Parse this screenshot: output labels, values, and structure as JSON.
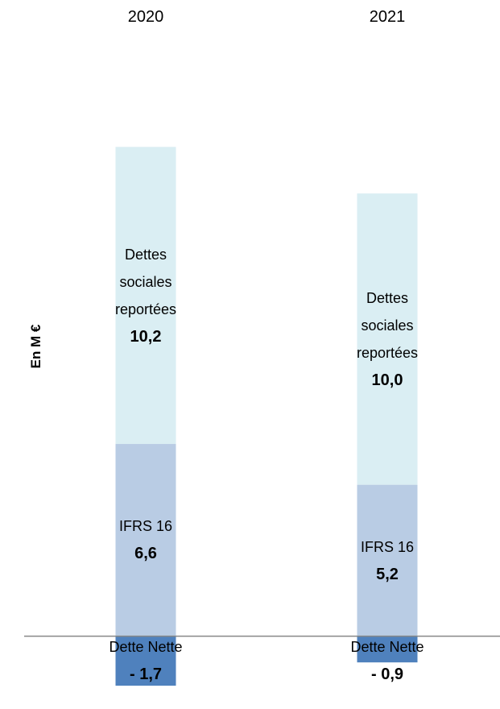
{
  "chart_data": {
    "type": "stacked_bar",
    "y_label": "En M €",
    "categories": [
      "2020",
      "2021"
    ],
    "ylim": [
      -2.5,
      17.5
    ],
    "series": [
      {
        "name": "Dette Nette",
        "color": "#4f81bd",
        "values": [
          -1.7,
          -0.9
        ],
        "value_labels": [
          "- 1,7",
          "- 0,9"
        ]
      },
      {
        "name": "IFRS 16",
        "color": "#b9cce4",
        "values": [
          6.6,
          5.2
        ],
        "value_labels": [
          "6,6",
          "5,2"
        ]
      },
      {
        "name": "Dettes sociales reportées",
        "color": "#daeef3",
        "values": [
          10.2,
          10.0
        ],
        "value_labels": [
          "10,2",
          "10,0"
        ]
      }
    ]
  }
}
